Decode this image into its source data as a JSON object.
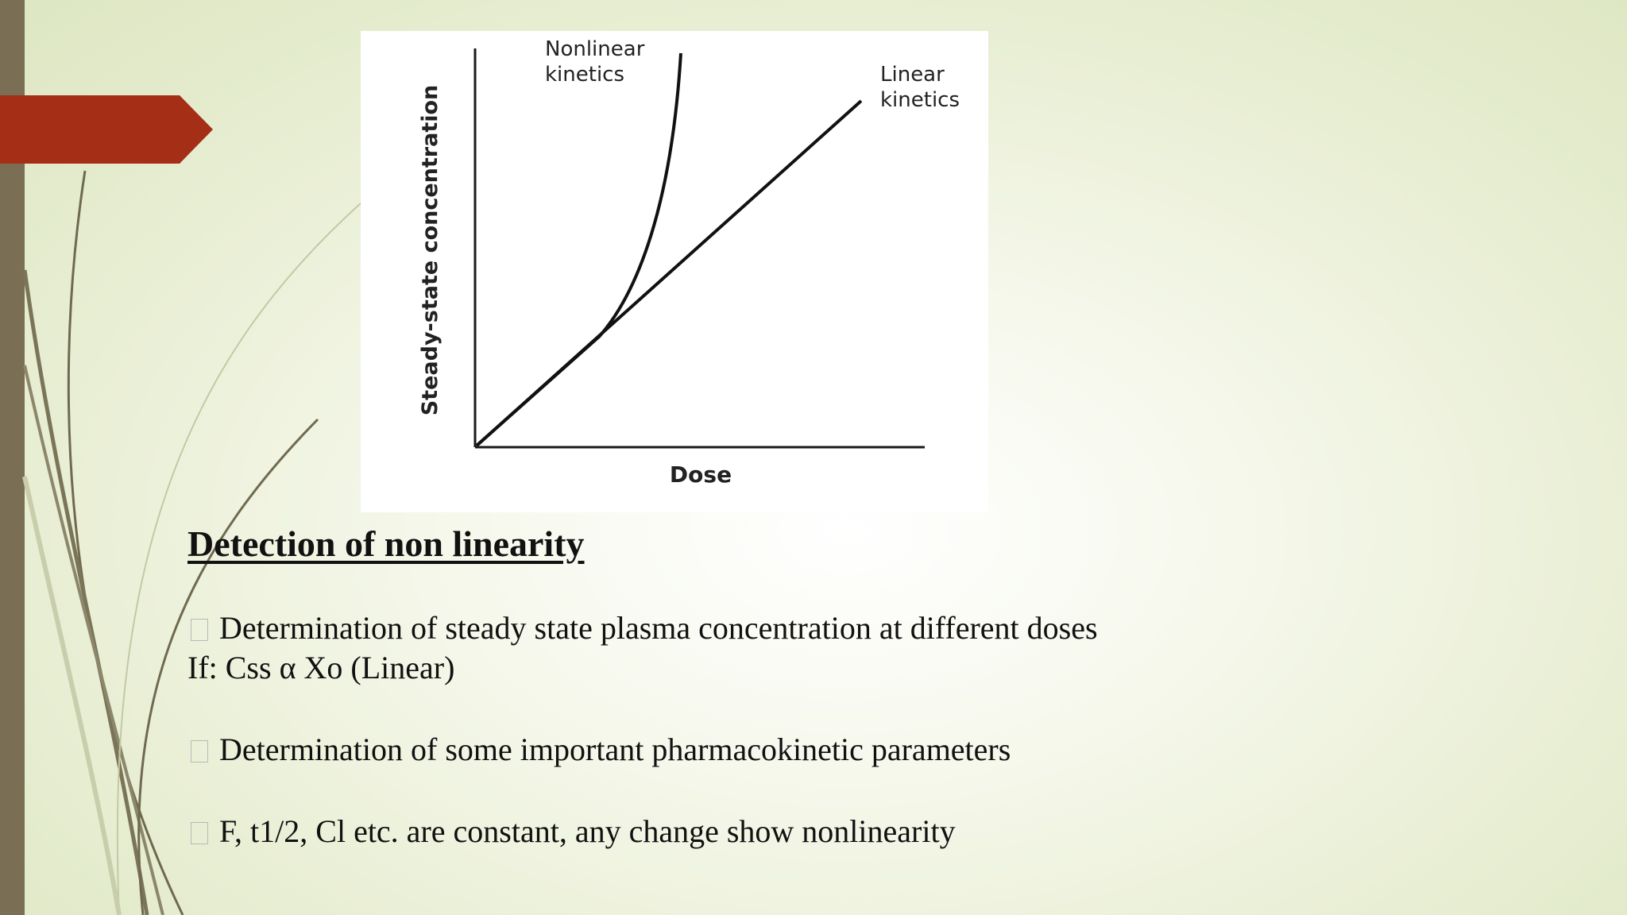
{
  "slide": {
    "accent_color": "#a52e17",
    "side_bar_color": "#7a6e55"
  },
  "figure": {
    "y_axis_label": "Steady-state concentration",
    "x_axis_label": "Dose",
    "nonlinear_label_line1": "Nonlinear",
    "nonlinear_label_line2": "kinetics",
    "linear_label_line1": "Linear",
    "linear_label_line2": "kinetics"
  },
  "content": {
    "heading": "Detection of non linearity",
    "bullet1": "Determination of steady state plasma concentration at different doses",
    "bullet1_followup": "If: Css α Xo (Linear)",
    "bullet2": "Determination of some important pharmacokinetic parameters",
    "bullet3": "F, t1/2, Cl etc. are constant, any change show nonlinearity"
  }
}
